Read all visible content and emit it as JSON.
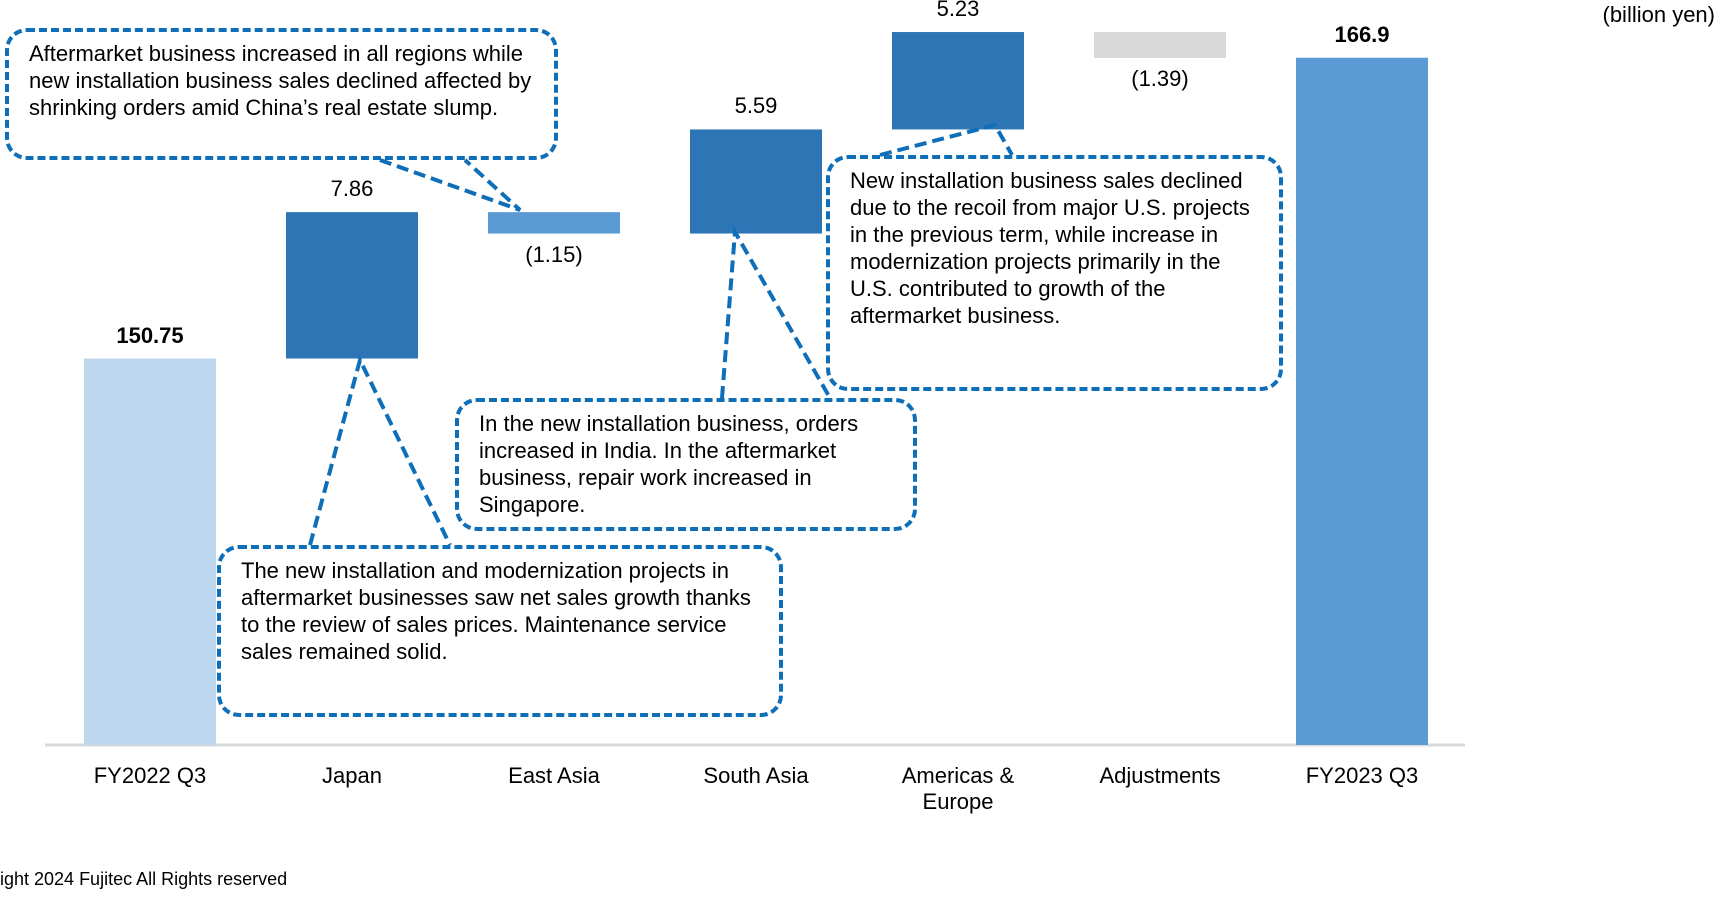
{
  "chart_data": {
    "type": "waterfall",
    "unit_label": "(billion yen)",
    "footer": "ight 2024 Fujitec All Rights reserved",
    "categories": [
      "FY2022 Q3",
      "Japan",
      "East Asia",
      "South Asia",
      "Americas & Europe",
      "Adjustments",
      "FY2023 Q3"
    ],
    "values": [
      150.75,
      7.86,
      -1.15,
      5.59,
      5.23,
      -1.39,
      166.9
    ],
    "value_labels": [
      "150.75",
      "7.86",
      "(1.15)",
      "5.59",
      "5.23",
      "(1.39)",
      "166.9"
    ],
    "measures": [
      "total",
      "relative",
      "relative",
      "relative",
      "relative",
      "relative",
      "total"
    ],
    "colors": [
      "#bdd7ee",
      "#2e75b6",
      "#5b9bd5",
      "#2e75b6",
      "#2e75b6",
      "#d9d9d9",
      "#5b9bd5"
    ],
    "ylim": [
      130,
      170
    ],
    "annotations": [
      {
        "text": "Aftermarket business increased in all regions while new installation business sales declined affected by shrinking orders amid China’s real estate slump."
      },
      {
        "text": "The new installation and modernization projects in aftermarket businesses saw net sales growth thanks to the review of sales prices. Maintenance service sales remained solid."
      },
      {
        "text": "In the new installation business, orders increased in India. In the aftermarket business, repair work increased in Singapore."
      },
      {
        "text": "New installation business sales declined due to the recoil from major U.S. projects in the previous term, while increase in modernization projects primarily in the U.S. contributed to growth of the aftermarket business."
      }
    ]
  }
}
